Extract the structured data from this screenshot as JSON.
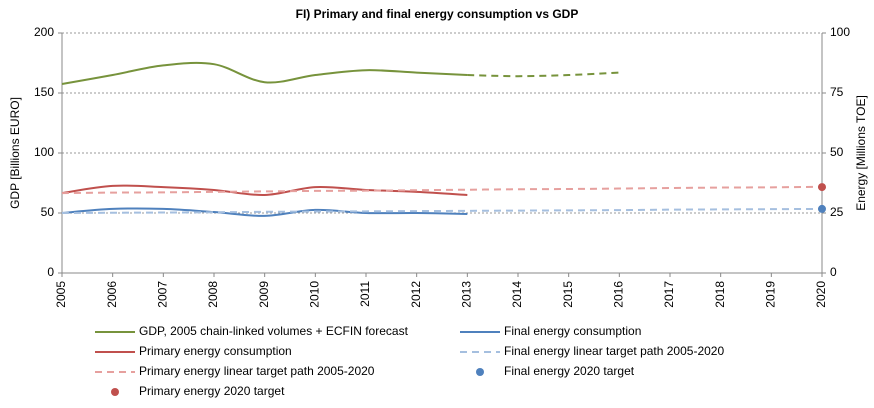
{
  "chart_data": {
    "type": "line",
    "title": "FI) Primary and final energy consumption vs GDP",
    "ylabel": "GDP [Billions EURO]",
    "y2label": "Energy [Millions TOE]",
    "x": [
      2005,
      2006,
      2007,
      2008,
      2009,
      2010,
      2011,
      2012,
      2013,
      2014,
      2015,
      2016,
      2017,
      2018,
      2019,
      2020
    ],
    "xlim": [
      2005,
      2020
    ],
    "xticks": [
      2005,
      2006,
      2007,
      2008,
      2009,
      2010,
      2011,
      2012,
      2013,
      2014,
      2015,
      2016,
      2017,
      2018,
      2019,
      2020
    ],
    "ylim": [
      0,
      200
    ],
    "yticks": [
      0,
      50,
      100,
      150,
      200
    ],
    "y2lim": [
      0,
      100
    ],
    "y2ticks": [
      0,
      25,
      50,
      75,
      100
    ],
    "grid": true,
    "series": [
      {
        "name": "GDP, 2005 chain-linked volumes + ECFIN forecast",
        "color": "#77933c",
        "dash_after": 2013,
        "values": [
          157.5,
          165,
          173,
          174,
          159,
          165,
          169,
          167,
          165,
          164,
          165,
          167,
          null,
          null,
          null,
          null
        ]
      },
      {
        "name": "Final energy consumption",
        "color": "#4f81bd",
        "axis": "y2",
        "values": [
          25.0,
          26.7,
          26.7,
          25.4,
          23.8,
          26.3,
          25.0,
          25.0,
          24.6,
          null,
          null,
          null,
          null,
          null,
          null,
          null
        ]
      },
      {
        "name": "Primary energy consumption",
        "color": "#c0504d",
        "axis": "y2",
        "values": [
          33.3,
          36.3,
          35.8,
          34.6,
          32.5,
          35.8,
          34.6,
          33.8,
          32.5,
          null,
          null,
          null,
          null,
          null,
          null,
          null
        ]
      },
      {
        "name": "Final energy linear target path 2005-2020",
        "color": "#a5bfdf",
        "axis": "y2",
        "dashed": true,
        "values": [
          25.0,
          25.1,
          25.2,
          25.3,
          25.5,
          25.6,
          25.7,
          25.8,
          25.9,
          26.0,
          26.1,
          26.2,
          26.4,
          26.5,
          26.6,
          26.7
        ]
      },
      {
        "name": "Primary energy linear target path 2005-2020",
        "color": "#e6a09e",
        "axis": "y2",
        "dashed": true,
        "values": [
          33.3,
          33.5,
          33.6,
          33.8,
          34.0,
          34.2,
          34.3,
          34.5,
          34.7,
          34.9,
          35.0,
          35.2,
          35.4,
          35.6,
          35.7,
          35.9
        ]
      },
      {
        "name": "Final energy 2020 target",
        "color": "#4f81bd",
        "axis": "y2",
        "marker": true,
        "values": [
          null,
          null,
          null,
          null,
          null,
          null,
          null,
          null,
          null,
          null,
          null,
          null,
          null,
          null,
          null,
          26.7
        ]
      },
      {
        "name": "Primary energy 2020 target",
        "color": "#c0504d",
        "axis": "y2",
        "marker": true,
        "values": [
          null,
          null,
          null,
          null,
          null,
          null,
          null,
          null,
          null,
          null,
          null,
          null,
          null,
          null,
          null,
          35.8
        ]
      }
    ]
  }
}
